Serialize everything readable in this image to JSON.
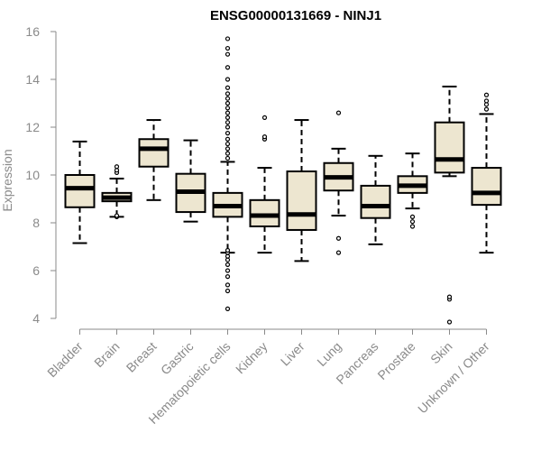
{
  "chart_data": {
    "type": "boxplot",
    "title": "ENSG00000131669 - NINJ1",
    "xlabel": "",
    "ylabel": "Expression",
    "ylim": [
      3.6,
      16.2
    ],
    "yticks": [
      4,
      6,
      8,
      10,
      12,
      14,
      16
    ],
    "grid": false,
    "colors": {
      "box_fill": "#ede6d0",
      "box_stroke": "#000000",
      "axis": "#8a8a8a",
      "title": "#000000"
    },
    "categories": [
      "Bladder",
      "Brain",
      "Breast",
      "Gastric",
      "Hematopoietic cells",
      "Kidney",
      "Liver",
      "Lung",
      "Pancreas",
      "Prostate",
      "Skin",
      "Unknown / Other"
    ],
    "boxes": [
      {
        "category": "Bladder",
        "whisker_low": 7.15,
        "q1": 8.65,
        "median": 9.45,
        "q3": 10.0,
        "whisker_high": 11.4,
        "outliers": []
      },
      {
        "category": "Brain",
        "whisker_low": 8.25,
        "q1": 8.9,
        "median": 9.05,
        "q3": 9.25,
        "whisker_high": 9.85,
        "outliers": [
          8.25,
          8.3,
          10.1,
          10.2,
          10.35
        ]
      },
      {
        "category": "Breast",
        "whisker_low": 8.95,
        "q1": 10.35,
        "median": 11.1,
        "q3": 11.5,
        "whisker_high": 12.3,
        "outliers": []
      },
      {
        "category": "Gastric",
        "whisker_low": 8.05,
        "q1": 8.45,
        "median": 9.3,
        "q3": 10.05,
        "whisker_high": 11.45,
        "outliers": []
      },
      {
        "category": "Hematopoietic cells",
        "whisker_low": 6.75,
        "q1": 8.25,
        "median": 8.7,
        "q3": 9.25,
        "whisker_high": 10.55,
        "outliers": [
          4.4,
          5.15,
          5.4,
          5.75,
          6.0,
          6.25,
          6.45,
          6.6,
          6.75,
          6.85,
          10.7,
          10.9,
          11.1,
          11.3,
          11.5,
          11.75,
          12.0,
          12.2,
          12.4,
          12.6,
          12.8,
          13.0,
          13.2,
          13.4,
          13.65,
          14.0,
          14.5,
          15.05,
          15.3,
          15.7
        ]
      },
      {
        "category": "Kidney",
        "whisker_low": 6.75,
        "q1": 7.85,
        "median": 8.3,
        "q3": 8.95,
        "whisker_high": 10.3,
        "outliers": [
          11.5,
          11.6,
          12.4
        ]
      },
      {
        "category": "Liver",
        "whisker_low": 6.4,
        "q1": 7.7,
        "median": 8.35,
        "q3": 10.15,
        "whisker_high": 12.3,
        "outliers": []
      },
      {
        "category": "Lung",
        "whisker_low": 8.3,
        "q1": 9.35,
        "median": 9.9,
        "q3": 10.5,
        "whisker_high": 11.1,
        "outliers": [
          6.75,
          7.35,
          12.6
        ]
      },
      {
        "category": "Pancreas",
        "whisker_low": 7.1,
        "q1": 8.2,
        "median": 8.7,
        "q3": 9.55,
        "whisker_high": 10.8,
        "outliers": []
      },
      {
        "category": "Prostate",
        "whisker_low": 8.6,
        "q1": 9.25,
        "median": 9.55,
        "q3": 9.95,
        "whisker_high": 10.9,
        "outliers": [
          7.85,
          8.05,
          8.25
        ]
      },
      {
        "category": "Skin",
        "whisker_low": 9.95,
        "q1": 10.1,
        "median": 10.65,
        "q3": 12.2,
        "whisker_high": 13.7,
        "outliers": [
          3.85,
          4.8,
          4.9
        ]
      },
      {
        "category": "Unknown / Other",
        "whisker_low": 6.75,
        "q1": 8.75,
        "median": 9.25,
        "q3": 10.3,
        "whisker_high": 12.55,
        "outliers": [
          12.75,
          12.95,
          13.1,
          13.35
        ]
      }
    ]
  }
}
